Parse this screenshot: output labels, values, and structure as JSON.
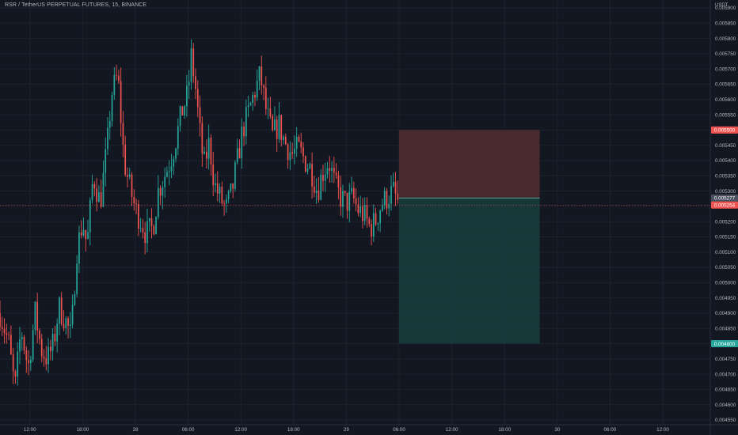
{
  "header": {
    "title": "RSR / TetherUS PERPETUAL FUTURES, 15, BINANCE",
    "currency": "USDT"
  },
  "colors": {
    "background": "#131722",
    "up": "#26a69a",
    "down": "#ef5350",
    "grid": "#1e222d",
    "axis_text": "#b2b5be",
    "stop_zone": "#4a2a2f",
    "target_zone": "#173a3b"
  },
  "chart_data": {
    "type": "candlestick",
    "y_axis_position": "right",
    "ylim": [
      0.00455,
      0.0059
    ],
    "y_ticks": [
      "0.005900",
      "0.005850",
      "0.005800",
      "0.005750",
      "0.005700",
      "0.005650",
      "0.005600",
      "0.005550",
      "0.005500",
      "0.005450",
      "0.005400",
      "0.005350",
      "0.005300",
      "0.005250",
      "0.005200",
      "0.005150",
      "0.005100",
      "0.005050",
      "0.005000",
      "0.004950",
      "0.004900",
      "0.004850",
      "0.004800",
      "0.004750",
      "0.004700",
      "0.004650",
      "0.004600",
      "0.004550"
    ],
    "x_ticks": [
      {
        "t": 12,
        "label": "12:00"
      },
      {
        "t": 18,
        "label": "18:00"
      },
      {
        "t": 24,
        "label": "28"
      },
      {
        "t": 30,
        "label": "06:00"
      },
      {
        "t": 36,
        "label": "12:00"
      },
      {
        "t": 42,
        "label": "18:00"
      },
      {
        "t": 48,
        "label": "29"
      },
      {
        "t": 54,
        "label": "06:00"
      },
      {
        "t": 60,
        "label": "12:00"
      },
      {
        "t": 66,
        "label": "18:00"
      },
      {
        "t": 72,
        "label": "30"
      },
      {
        "t": 78,
        "label": "06:00"
      },
      {
        "t": 84,
        "label": "12:00"
      }
    ],
    "time_unit": "hour",
    "candle_interval_hours": 0.25,
    "x_range_hours": [
      8.6,
      89.4
    ],
    "last_price": 0.005254,
    "price_labels": [
      {
        "value": 0.0055,
        "text": "0.005500",
        "color": "#ef5350"
      },
      {
        "value": 0.005277,
        "text": "0.005277",
        "color": "#4a4f5e"
      },
      {
        "value": 0.005254,
        "text": "0.005254",
        "color": "#ef5350"
      },
      {
        "value": 0.0048,
        "text": "0.004800",
        "color": "#26a69a"
      }
    ],
    "position": {
      "type": "short",
      "entry": 0.005277,
      "stop": 0.0055,
      "target": 0.0048,
      "start_hour": 54.0,
      "end_hour": 70.0
    },
    "path_keypoints": [
      [
        8.6,
        0.0049
      ],
      [
        9.6,
        0.0048
      ],
      [
        10.3,
        0.00465
      ],
      [
        11.0,
        0.00485
      ],
      [
        11.8,
        0.00472
      ],
      [
        12.6,
        0.0049
      ],
      [
        13.3,
        0.00478
      ],
      [
        14.0,
        0.00475
      ],
      [
        14.7,
        0.0048
      ],
      [
        15.3,
        0.00492
      ],
      [
        16.0,
        0.00488
      ],
      [
        16.7,
        0.00482
      ],
      [
        17.3,
        0.0051
      ],
      [
        18.0,
        0.0052
      ],
      [
        18.5,
        0.00512
      ],
      [
        19.2,
        0.00535
      ],
      [
        20.0,
        0.00526
      ],
      [
        20.8,
        0.00545
      ],
      [
        21.3,
        0.00562
      ],
      [
        22.0,
        0.00568
      ],
      [
        22.7,
        0.0054
      ],
      [
        23.3,
        0.00532
      ],
      [
        24.0,
        0.00524
      ],
      [
        24.7,
        0.0052
      ],
      [
        25.2,
        0.00516
      ],
      [
        26.0,
        0.00518
      ],
      [
        26.6,
        0.0053
      ],
      [
        27.3,
        0.00535
      ],
      [
        28.0,
        0.0054
      ],
      [
        28.7,
        0.00548
      ],
      [
        29.3,
        0.00556
      ],
      [
        30.0,
        0.00562
      ],
      [
        30.3,
        0.00575
      ],
      [
        30.8,
        0.00565
      ],
      [
        31.3,
        0.0055
      ],
      [
        31.8,
        0.00538
      ],
      [
        32.4,
        0.00546
      ],
      [
        33.0,
        0.00532
      ],
      [
        33.6,
        0.00528
      ],
      [
        34.3,
        0.00524
      ],
      [
        35.0,
        0.0053
      ],
      [
        35.6,
        0.0054
      ],
      [
        36.2,
        0.0055
      ],
      [
        36.9,
        0.00556
      ],
      [
        37.5,
        0.00562
      ],
      [
        38.2,
        0.00568
      ],
      [
        38.9,
        0.00556
      ],
      [
        39.6,
        0.00548
      ],
      [
        40.3,
        0.00552
      ],
      [
        41.0,
        0.00546
      ],
      [
        41.8,
        0.00542
      ],
      [
        42.5,
        0.00544
      ],
      [
        43.3,
        0.0054
      ],
      [
        44.0,
        0.00537
      ],
      [
        44.7,
        0.0053
      ],
      [
        45.3,
        0.00536
      ],
      [
        46.0,
        0.0054
      ],
      [
        46.7,
        0.00532
      ],
      [
        47.3,
        0.00528
      ],
      [
        48.0,
        0.00526
      ],
      [
        48.7,
        0.00528
      ],
      [
        49.3,
        0.00524
      ],
      [
        50.0,
        0.00522
      ],
      [
        50.7,
        0.00518
      ],
      [
        51.3,
        0.0052
      ],
      [
        52.0,
        0.00526
      ],
      [
        52.7,
        0.00528
      ],
      [
        53.3,
        0.0053
      ],
      [
        54.0,
        0.005254
      ]
    ]
  }
}
